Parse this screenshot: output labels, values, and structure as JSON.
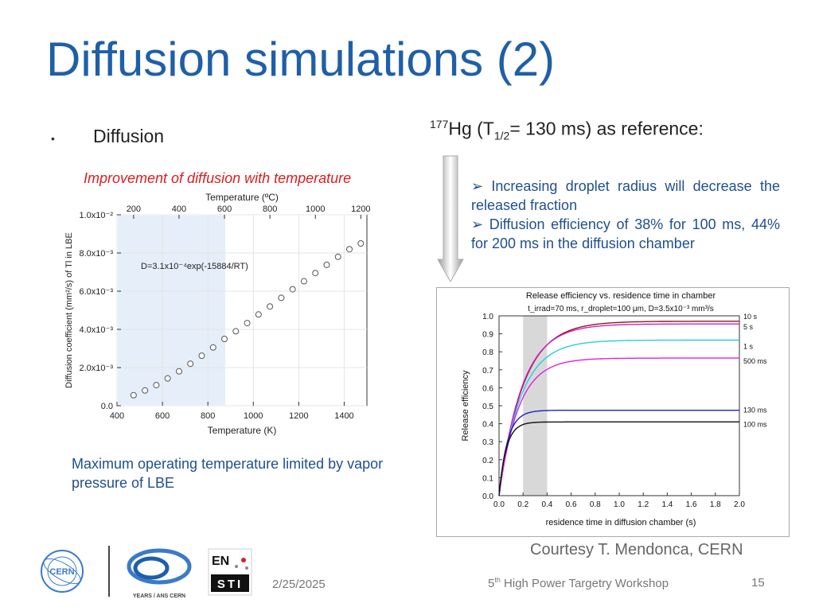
{
  "slide": {
    "title": "Diffusion simulations (2)",
    "bullet": "•",
    "bullet_text": "Diffusion",
    "caption_red": "Improvement of diffusion with temperature",
    "reference": {
      "iso": "177",
      "elem": "Hg (T",
      "sub": "1/2",
      "rest": "= 130 ms) as reference:"
    },
    "points": [
      "➢ Increasing droplet radius will decrease the released fraction",
      "➢ Diffusion efficiency of 38% for 100 ms, 44% for 200 ms in the diffusion chamber"
    ],
    "blue_note": "Maximum operating temperature limited by vapor pressure of LBE",
    "courtesy": "Courtesy T. Mendonca, CERN",
    "footer": {
      "date": "2/25/2025",
      "ws_sup": "th",
      "ws_pre": "5",
      "ws_rest": " High Power Targetry Workshop",
      "page": "15"
    },
    "logos": {
      "cern": "CERN",
      "years": "YEARS / ANS CERN",
      "en": "EN",
      "sti": "STI"
    }
  },
  "chart_data": [
    {
      "type": "scatter",
      "xlabel": "Temperature (K)",
      "x2label": "Temperature (ºC)",
      "ylabel": "Diffusion coefficient (mm²/s) of Tl in LBE",
      "xlim": [
        400,
        1500
      ],
      "ylim": [
        0,
        0.01
      ],
      "xticks": [
        "400",
        "600",
        "800",
        "1000",
        "1200",
        "1400"
      ],
      "x2ticks": [
        "200",
        "400",
        "600",
        "800",
        "1000",
        "1200"
      ],
      "yticks": [
        "0.0",
        "2.0x10⁻³",
        "4.0x10⁻³",
        "6.0x10⁻³",
        "8.0x10⁻³",
        "1.0x10⁻²"
      ],
      "annotation": "D=3.1x10⁻⁴exp(-15884/RT)",
      "shaded_range_K": [
        400,
        873
      ],
      "points": [
        {
          "x": 473,
          "y": 0.00055
        },
        {
          "x": 523,
          "y": 0.0008
        },
        {
          "x": 573,
          "y": 0.00108
        },
        {
          "x": 623,
          "y": 0.00143
        },
        {
          "x": 673,
          "y": 0.0018
        },
        {
          "x": 723,
          "y": 0.0022
        },
        {
          "x": 773,
          "y": 0.00262
        },
        {
          "x": 823,
          "y": 0.00305
        },
        {
          "x": 873,
          "y": 0.0035
        },
        {
          "x": 923,
          "y": 0.0039
        },
        {
          "x": 973,
          "y": 0.00433
        },
        {
          "x": 1023,
          "y": 0.00478
        },
        {
          "x": 1073,
          "y": 0.0052
        },
        {
          "x": 1123,
          "y": 0.00565
        },
        {
          "x": 1173,
          "y": 0.0061
        },
        {
          "x": 1223,
          "y": 0.00652
        },
        {
          "x": 1273,
          "y": 0.00695
        },
        {
          "x": 1323,
          "y": 0.00738
        },
        {
          "x": 1373,
          "y": 0.0078
        },
        {
          "x": 1423,
          "y": 0.0082
        },
        {
          "x": 1473,
          "y": 0.0085
        }
      ]
    },
    {
      "type": "line",
      "title": "Release efficiency vs. residence time in chamber",
      "subtitle": "t_irrad=70 ms, r_droplet=100 μm, D=3.5x10⁻³ mm³/s",
      "xlabel": "residence time in diffusion chamber (s)",
      "ylabel": "Release efficiency",
      "xlim": [
        0,
        2.0
      ],
      "ylim": [
        0,
        1.0
      ],
      "xticks": [
        "0.0",
        "0.2",
        "0.4",
        "0.6",
        "0.8",
        "1.0",
        "1.2",
        "1.4",
        "1.6",
        "1.8",
        "2.0"
      ],
      "yticks": [
        "0.0",
        "0.1",
        "0.2",
        "0.3",
        "0.4",
        "0.5",
        "0.6",
        "0.7",
        "0.8",
        "0.9",
        "1.0"
      ],
      "shaded_range": [
        0.2,
        0.4
      ],
      "series": [
        {
          "name": "10 s",
          "plateau": 0.97,
          "tau": 0.2,
          "color": "#8b1a1a"
        },
        {
          "name": "5 s",
          "plateau": 0.955,
          "tau": 0.19,
          "color": "#cc22cc"
        },
        {
          "name": "1 s",
          "plateau": 0.865,
          "tau": 0.18,
          "color": "#20d0e0"
        },
        {
          "name": "500 ms",
          "plateau": 0.765,
          "tau": 0.16,
          "color": "#e020e0"
        },
        {
          "name": "130 ms",
          "plateau": 0.475,
          "tau": 0.07,
          "color": "#2020c0"
        },
        {
          "name": "100 ms",
          "plateau": 0.41,
          "tau": 0.06,
          "color": "#111111"
        }
      ]
    }
  ]
}
